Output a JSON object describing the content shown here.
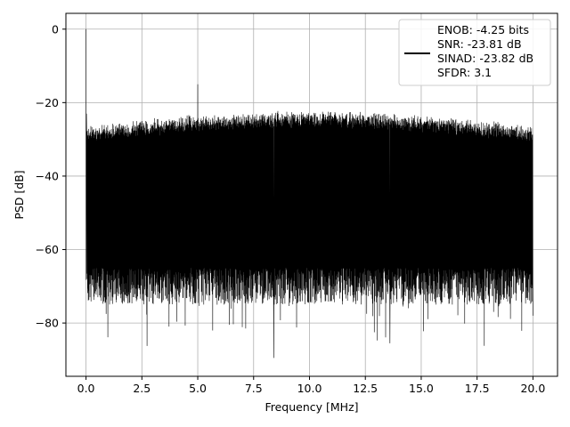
{
  "chart_data": {
    "type": "line",
    "title": "",
    "xlabel": "Frequency [MHz]",
    "ylabel": "PSD [dB]",
    "xlim": [
      -0.9,
      21.1
    ],
    "ylim": [
      -94.5,
      4.3
    ],
    "xticks": [
      0.0,
      2.5,
      5.0,
      7.5,
      10.0,
      12.5,
      15.0,
      17.5,
      20.0
    ],
    "xtick_labels": [
      "0.0",
      "2.5",
      "5.0",
      "7.5",
      "10.0",
      "12.5",
      "15.0",
      "17.5",
      "20.0"
    ],
    "yticks": [
      0,
      -20,
      -40,
      -60,
      -80
    ],
    "ytick_labels": [
      "0",
      "−20",
      "−40",
      "−60",
      "−80"
    ],
    "grid": true,
    "legend_position": "top-right",
    "series": [
      {
        "name": "PSD",
        "color": "#000000",
        "description_points": {
          "x": [
            0.0,
            0.02,
            0.05,
            5.0,
            8.4,
            12.9,
            13.6,
            20.0
          ],
          "y": [
            0.0,
            -23.0,
            -68.0,
            -15.0,
            -89.5,
            -82.5,
            -85.5,
            -78.0
          ]
        },
        "noise_floor_upper_envelope_db": [
          -27,
          -22
        ],
        "noise_floor_lower_envelope_db": [
          -82,
          -64
        ],
        "x_range_mhz": [
          0.0,
          20.0
        ]
      }
    ],
    "legend_entries": [
      "ENOB: -4.25 bits",
      "SNR: -23.81 dB",
      "SINAD: -23.82 dB",
      "SFDR: 3.1"
    ]
  }
}
